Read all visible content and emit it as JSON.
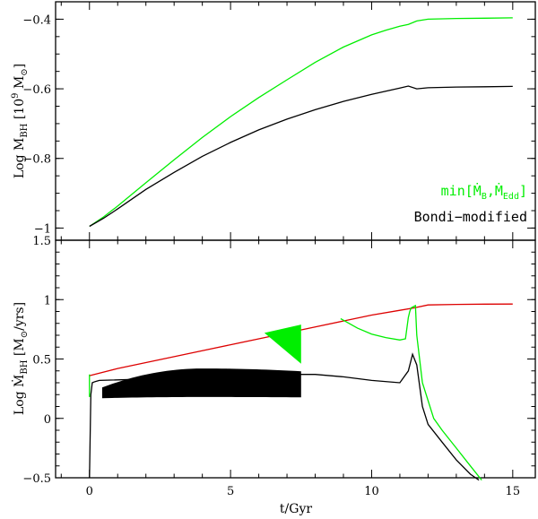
{
  "chart_data": [
    {
      "type": "line",
      "panel": "top",
      "xlabel": "",
      "ylabel_main": "Log  M",
      "ylabel_sub": "BH",
      "ylabel_units": "[10",
      "ylabel_exp": "9",
      "ylabel_units_tail": " M",
      "ylabel_sun": "⊙",
      "ylabel_close": "]",
      "xlim": [
        -1.2,
        15.8
      ],
      "ylim": [
        -1.035,
        -0.35
      ],
      "y_ticks": [
        -1,
        -0.8,
        -0.6,
        -0.4
      ],
      "y_tick_labels": [
        "−1",
        "−0.8",
        "−0.6",
        "−0.4"
      ],
      "x_ticks": [
        0,
        5,
        10,
        15
      ],
      "legend": {
        "position": "bottom-right",
        "entries": [
          {
            "name": "min[Ṁ",
            "sub1": "B",
            "sep": ",Ṁ",
            "sub2": "Edd",
            "close": "]",
            "color": "#00ee00"
          },
          {
            "name": "Bondi−modified",
            "color": "#000000"
          }
        ]
      },
      "series": [
        {
          "name": "min[MB,MEdd]",
          "color": "#00ee00",
          "x": [
            0,
            0.5,
            1,
            2,
            3,
            4,
            5,
            6,
            7,
            8,
            9,
            10,
            10.5,
            11,
            11.3,
            11.6,
            12,
            13,
            14,
            15
          ],
          "y": [
            -0.995,
            -0.968,
            -0.937,
            -0.87,
            -0.804,
            -0.74,
            -0.68,
            -0.625,
            -0.574,
            -0.524,
            -0.48,
            -0.445,
            -0.432,
            -0.42,
            -0.415,
            -0.405,
            -0.4,
            -0.398,
            -0.397,
            -0.396
          ]
        },
        {
          "name": "Bondi-modified",
          "color": "#000000",
          "x": [
            0,
            0.5,
            1,
            2,
            3,
            4,
            5,
            6,
            7,
            8,
            9,
            10,
            10.5,
            11,
            11.3,
            11.6,
            12,
            13,
            14,
            15
          ],
          "y": [
            -0.995,
            -0.972,
            -0.945,
            -0.889,
            -0.84,
            -0.794,
            -0.754,
            -0.718,
            -0.687,
            -0.66,
            -0.636,
            -0.616,
            -0.607,
            -0.598,
            -0.592,
            -0.6,
            -0.597,
            -0.595,
            -0.594,
            -0.593
          ]
        }
      ]
    },
    {
      "type": "line",
      "panel": "bottom",
      "xlabel": "t/Gyr",
      "ylabel_main": "Log  Ṁ",
      "ylabel_sub": "BH",
      "ylabel_units": "[M",
      "ylabel_sun": "⊙",
      "ylabel_units_tail": "/yrs]",
      "xlim": [
        -1.2,
        15.8
      ],
      "ylim": [
        -0.5,
        1.5
      ],
      "y_ticks": [
        -0.5,
        0,
        0.5,
        1,
        1.5
      ],
      "y_tick_labels": [
        "−0.5",
        "0",
        "0.5",
        "1",
        "1.5"
      ],
      "x_ticks": [
        0,
        5,
        10,
        15
      ],
      "x_tick_labels": [
        "0",
        "5",
        "10",
        "15"
      ],
      "series": [
        {
          "name": "Eddington",
          "color": "#dd0000",
          "x": [
            0,
            1,
            2,
            3,
            4,
            5,
            6,
            7,
            8,
            9,
            10,
            11,
            11.5,
            12,
            13,
            14,
            15
          ],
          "y": [
            0.36,
            0.42,
            0.47,
            0.52,
            0.57,
            0.62,
            0.67,
            0.72,
            0.77,
            0.82,
            0.87,
            0.91,
            0.93,
            0.955,
            0.96,
            0.962,
            0.963
          ]
        },
        {
          "name": "min[MB,MEdd]",
          "color": "#00ee00",
          "x": [
            8.9,
            9.5,
            10,
            10.5,
            11,
            11.2,
            11.3,
            11.35,
            11.4,
            11.55,
            11.6,
            11.8,
            12.2,
            12.5,
            13,
            13.5,
            13.9
          ],
          "y": [
            0.84,
            0.76,
            0.71,
            0.68,
            0.66,
            0.67,
            0.85,
            0.9,
            0.93,
            0.95,
            0.7,
            0.3,
            0.0,
            -0.1,
            -0.25,
            -0.4,
            -0.52
          ]
        },
        {
          "name": "Bondi-modified",
          "color": "#000000",
          "x": [
            0,
            0.05,
            0.1,
            0.2,
            0.35,
            7.5,
            8,
            9,
            10,
            11,
            11.3,
            11.45,
            11.6,
            11.8,
            12,
            12.5,
            13,
            13.5,
            13.8
          ],
          "y": [
            -0.5,
            0.2,
            0.3,
            0.31,
            0.32,
            0.37,
            0.37,
            0.35,
            0.32,
            0.3,
            0.4,
            0.54,
            0.45,
            0.1,
            -0.05,
            -0.2,
            -0.35,
            -0.47,
            -0.52
          ]
        }
      ],
      "green_drop": {
        "x": 0,
        "y": [
          0.37,
          0.18
        ]
      },
      "black_band": {
        "x": [
          0.45,
          7.5
        ],
        "upper_y": [
          0.26,
          0.42
        ],
        "lower_y": [
          0.17,
          0.18
        ],
        "peak_x": 4
      }
    }
  ]
}
